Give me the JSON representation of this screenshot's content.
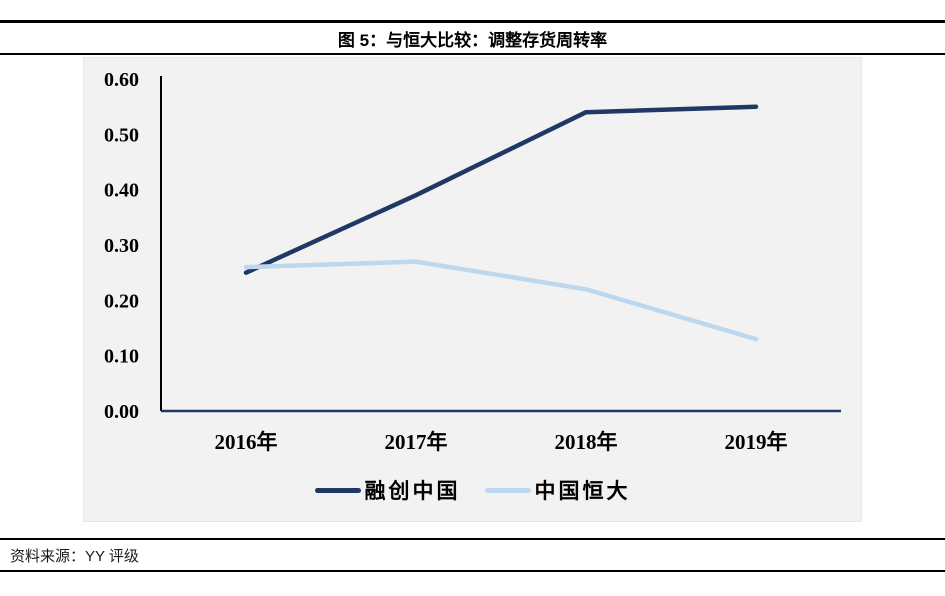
{
  "figure": {
    "title": "图 5：与恒大比较：调整存货周转率",
    "source_label": "资料来源：YY 评级"
  },
  "chart_data": {
    "type": "line",
    "title": "图 5：与恒大比较：调整存货周转率",
    "categories": [
      "2016年",
      "2017年",
      "2018年",
      "2019年"
    ],
    "series": [
      {
        "name": "融创中国",
        "color": "#1f3864",
        "values": [
          0.25,
          0.39,
          0.54,
          0.55
        ]
      },
      {
        "name": "中国恒大",
        "color": "#bdd7ee",
        "values": [
          0.26,
          0.27,
          0.22,
          0.13
        ]
      }
    ],
    "y_ticks": [
      "0.60",
      "0.50",
      "0.40",
      "0.30",
      "0.20",
      "0.10",
      "0.00"
    ],
    "ylim": [
      0.0,
      0.6
    ],
    "xlabel": "",
    "ylabel": "",
    "grid": false,
    "legend_position": "bottom",
    "plot_bg_color": "#f2f2f2",
    "x_axis_color": "#1f3864",
    "y_axis_color": "#000000"
  }
}
